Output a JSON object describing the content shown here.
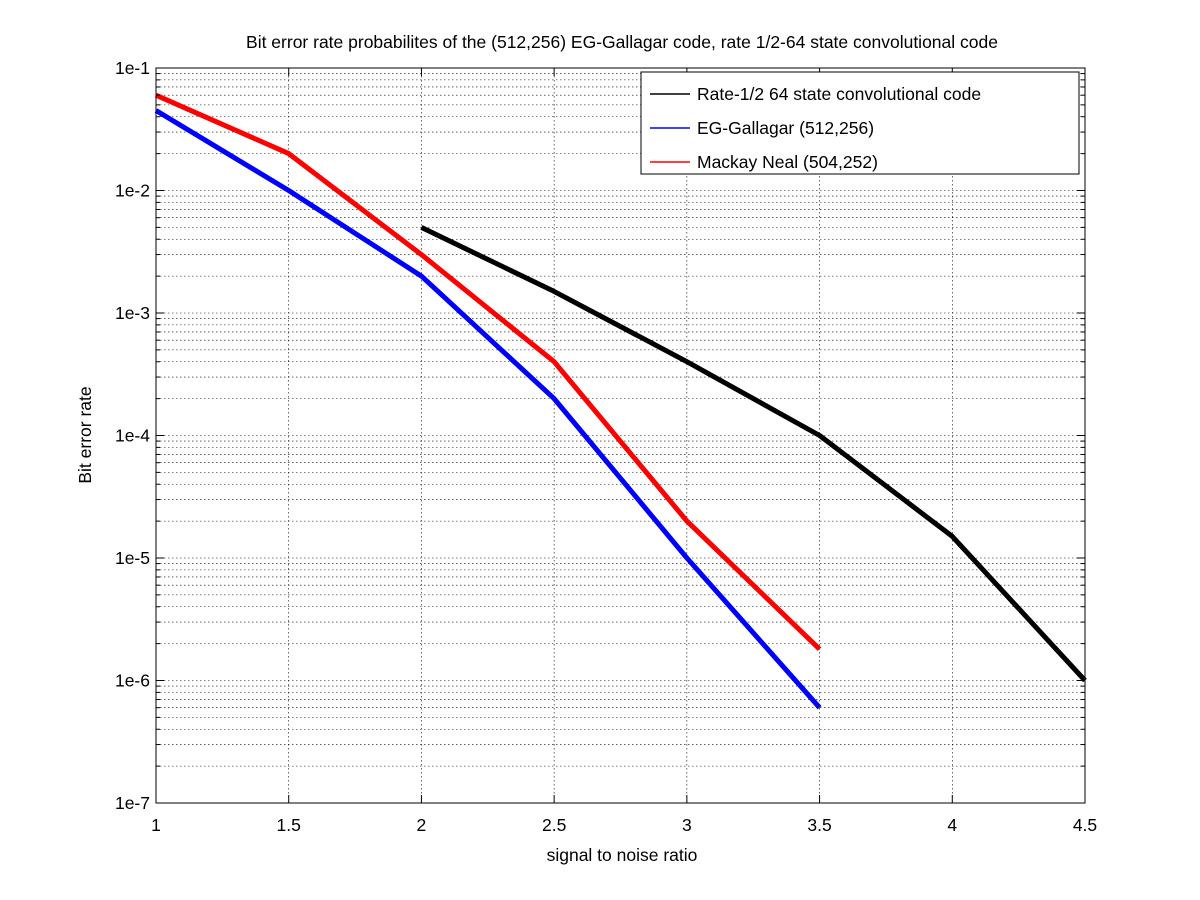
{
  "chart_data": {
    "type": "line",
    "title": "Bit error rate probabilites of the (512,256) EG-Gallagar code, rate 1/2-64 state convolutional code",
    "xlabel": "signal to noise ratio",
    "ylabel": "Bit error rate",
    "xlim": [
      1,
      4.5
    ],
    "ylim": [
      1e-07,
      0.1
    ],
    "yscale": "log",
    "grid": true,
    "legend_position": "top-right",
    "xticks": [
      1,
      1.5,
      2,
      2.5,
      3,
      3.5,
      4,
      4.5
    ],
    "xtick_labels": [
      "1",
      "1.5",
      "2",
      "2.5",
      "3",
      "3.5",
      "4",
      "4.5"
    ],
    "yticks": [
      1e-07,
      1e-06,
      1e-05,
      0.0001,
      0.001,
      0.01,
      0.1
    ],
    "ytick_labels": [
      "1e-7",
      "1e-6",
      "1e-5",
      "1e-4",
      "1e-3",
      "1e-2",
      "1e-1"
    ],
    "series": [
      {
        "name": "Rate-1/2 64 state convolutional code",
        "color": "#000000",
        "x": [
          2,
          2.5,
          3,
          3.5,
          4,
          4.5
        ],
        "y": [
          0.005,
          0.0015,
          0.0004,
          0.0001,
          1.5e-05,
          1e-06
        ]
      },
      {
        "name": "EG-Gallagar (512,256)",
        "color": "#0000ff",
        "x": [
          1,
          1.5,
          2,
          2.5,
          3,
          3.5
        ],
        "y": [
          0.045,
          0.01,
          0.002,
          0.0002,
          1e-05,
          6e-07
        ]
      },
      {
        "name": "Mackay Neal (504,252)",
        "color": "#ff0000",
        "x": [
          1,
          1.5,
          2,
          2.5,
          3,
          3.5
        ],
        "y": [
          0.06,
          0.02,
          0.003,
          0.0004,
          2e-05,
          1.8e-06
        ]
      }
    ]
  }
}
